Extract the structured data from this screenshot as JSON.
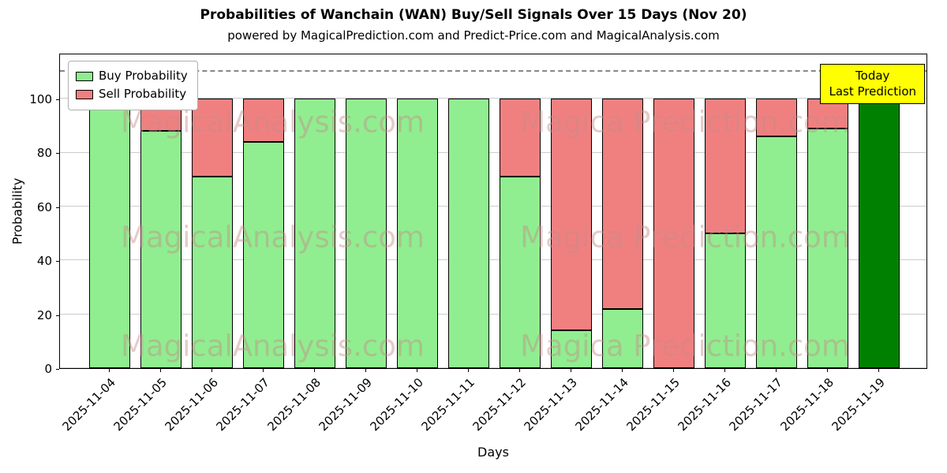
{
  "title": "Probabilities of Wanchain (WAN) Buy/Sell Signals Over 15 Days (Nov 20)",
  "subtitle": "powered by MagicalPrediction.com and Predict-Price.com and MagicalAnalysis.com",
  "legend": {
    "buy": "Buy Probability",
    "sell": "Sell Probability"
  },
  "annotation": {
    "line1": "Today",
    "line2": "Last Prediction"
  },
  "watermarks": {
    "left": "MagicalAnalysis.com",
    "right": "Magica Prediction.com"
  },
  "colors": {
    "buy": "#90ee90",
    "sell": "#f08080",
    "today": "#008000",
    "annotation_bg": "#ffff00",
    "grid": "#cccccc",
    "dashed": "#888888"
  },
  "chart_data": {
    "type": "bar",
    "stacked": true,
    "title": "Probabilities of Wanchain (WAN) Buy/Sell Signals Over 15 Days (Nov 20)",
    "xlabel": "Days",
    "ylabel": "Probability",
    "ylim": [
      0,
      117
    ],
    "yticks": [
      0,
      20,
      40,
      60,
      80,
      100
    ],
    "dashed_line_y": 110,
    "grid": true,
    "legend_position": "upper-left",
    "categories": [
      "2025-11-04",
      "2025-11-05",
      "2025-11-06",
      "2025-11-07",
      "2025-11-08",
      "2025-11-09",
      "2025-11-10",
      "2025-11-11",
      "2025-11-12",
      "2025-11-13",
      "2025-11-14",
      "2025-11-15",
      "2025-11-16",
      "2025-11-17",
      "2025-11-18",
      "2025-11-19"
    ],
    "series": [
      {
        "name": "Buy Probability",
        "color": "#90ee90",
        "values": [
          100,
          88,
          71,
          84,
          100,
          100,
          100,
          100,
          71,
          14,
          22,
          0,
          50,
          86,
          89,
          100
        ]
      },
      {
        "name": "Sell Probability",
        "color": "#f08080",
        "values": [
          0,
          12,
          29,
          16,
          0,
          0,
          0,
          0,
          29,
          86,
          78,
          100,
          50,
          14,
          11,
          0
        ]
      }
    ],
    "today_index": 15
  }
}
